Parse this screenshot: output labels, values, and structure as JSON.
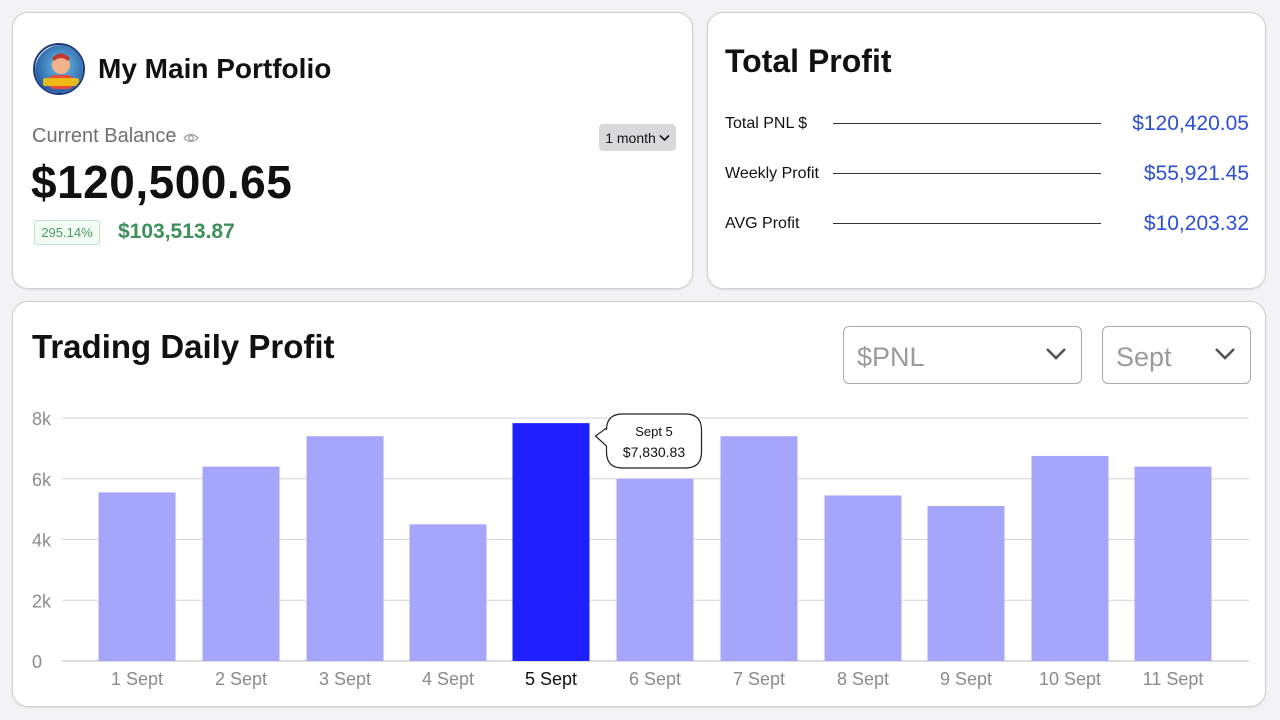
{
  "portfolio": {
    "title": "My Main Portfolio",
    "balance_label": "Current Balance",
    "period": "1 month",
    "balance": "$120,500.65",
    "change_pct": "295.14%",
    "change_amount": "$103,513.87"
  },
  "profit": {
    "title": "Total Profit",
    "rows": [
      {
        "label": "Total PNL $",
        "value": "$120,420.05"
      },
      {
        "label": "Weekly Profit",
        "value": "$55,921.45"
      },
      {
        "label": "AVG Profit",
        "value": "$10,203.32"
      }
    ]
  },
  "trading": {
    "title": "Trading Daily Profit",
    "metric_select": "$PNL",
    "month_select": "Sept",
    "tooltip": {
      "date": "Sept 5",
      "value": "$7,830.83"
    }
  },
  "colors": {
    "bar": "#a5a5fa",
    "bar_active": "#2020ff",
    "accent_blue": "#2d4fd6",
    "gain_green": "#3f8f5c"
  },
  "chart_data": {
    "type": "bar",
    "categories": [
      "1 Sept",
      "2 Sept",
      "3 Sept",
      "4 Sept",
      "5 Sept",
      "6 Sept",
      "7 Sept",
      "8 Sept",
      "9 Sept",
      "10 Sept",
      "11 Sept"
    ],
    "values": [
      5550,
      6400,
      7400,
      4500,
      7830.83,
      6000,
      7400,
      5450,
      5100,
      6750,
      6400
    ],
    "highlighted_index": 4,
    "yticks": [
      "0",
      "2k",
      "4k",
      "6k",
      "8k"
    ],
    "ylim": [
      0,
      8000
    ],
    "grid": true
  }
}
